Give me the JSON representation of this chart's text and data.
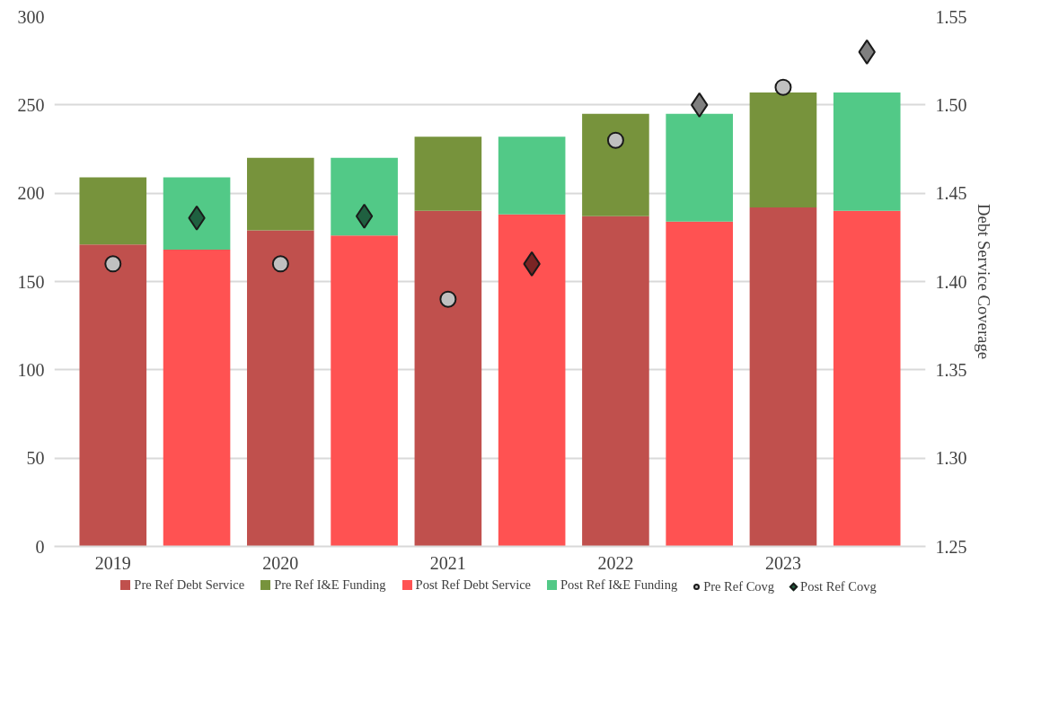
{
  "chart_data": {
    "type": "bar",
    "stacked": true,
    "categories": [
      "2019",
      null,
      "2020",
      null,
      "2021",
      null,
      "2022",
      null,
      "2023",
      null
    ],
    "y2label": "Debt Service Coverage",
    "ylim": [
      0,
      300
    ],
    "yticks": [
      0,
      50,
      100,
      150,
      200,
      250,
      300
    ],
    "y2lim": [
      1.25,
      1.55
    ],
    "y2ticks": [
      1.25,
      {
        "value": 1.3,
        "label": "1.30"
      },
      1.35,
      {
        "value": 1.4,
        "label": "1.40"
      },
      1.45,
      {
        "value": 1.5,
        "label": "1.50"
      },
      1.55
    ],
    "grid": "y",
    "legend": "bottom",
    "series": [
      {
        "name": "Pre Ref Debt Service",
        "color": "#c0504d",
        "values": [
          171,
          null,
          179,
          null,
          190,
          null,
          187,
          null,
          192,
          null
        ]
      },
      {
        "name": "Pre Ref I&E Funding",
        "color": "#77933c",
        "values": [
          38,
          null,
          41,
          null,
          42,
          null,
          58,
          null,
          65,
          null
        ]
      },
      {
        "name": "Post Ref Debt Service",
        "color": "#ff5252",
        "values": [
          null,
          168,
          null,
          176,
          null,
          188,
          null,
          184,
          null,
          190
        ]
      },
      {
        "name": "Post Ref I&E Funding",
        "color": "#52c987",
        "values": [
          null,
          41,
          null,
          44,
          null,
          44,
          null,
          61,
          null,
          67
        ]
      },
      {
        "name": "Pre Ref Covg",
        "type": "scatter",
        "axis": "y2",
        "marker": "circle",
        "color": "#c0c0c0",
        "values": [
          1.41,
          null,
          1.41,
          null,
          1.39,
          null,
          1.48,
          null,
          1.51,
          null
        ]
      },
      {
        "name": "Post Ref Covg",
        "type": "scatter",
        "axis": "y2",
        "marker": "diamond",
        "colors": [
          null,
          "#1f6040",
          null,
          "#1f6040",
          null,
          "#7a2424",
          null,
          "#7f7f7f",
          null,
          "#7f7f7f"
        ],
        "values": [
          null,
          1.436,
          null,
          1.437,
          null,
          1.41,
          null,
          1.5,
          null,
          1.53
        ]
      }
    ]
  }
}
